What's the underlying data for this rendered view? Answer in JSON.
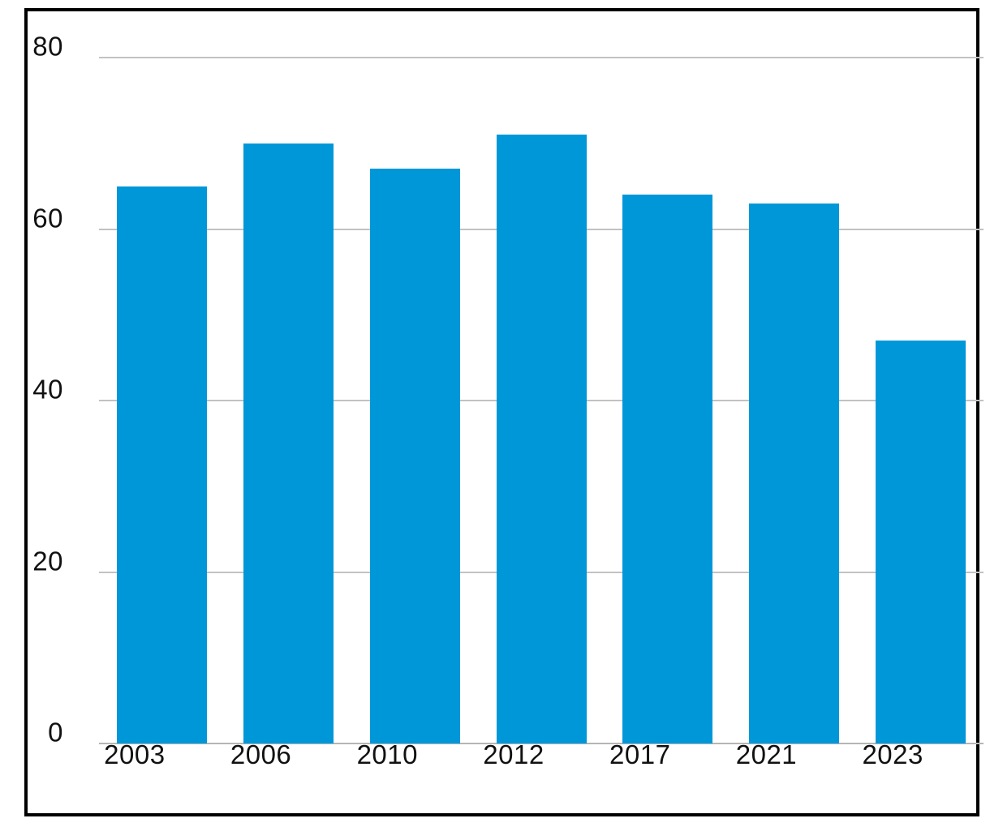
{
  "chart_data": {
    "type": "bar",
    "title": "",
    "xlabel": "",
    "ylabel": "",
    "categories": [
      "2003",
      "2006",
      "2010",
      "2012",
      "2017",
      "2021",
      "2023"
    ],
    "values": [
      65,
      70,
      67,
      71,
      64,
      63,
      47
    ],
    "ylim": [
      0,
      80
    ],
    "yticks": [
      0,
      20,
      40,
      60,
      80
    ],
    "grid": true,
    "legend": "none",
    "bar_color": "#0097d9"
  },
  "colors": {
    "bar": "#0097d9",
    "gridline": "#c2c2c2",
    "baseline": "#b5b5b5",
    "axis_label": "#111111",
    "frame_border": "#000000",
    "background": "#ffffff"
  }
}
